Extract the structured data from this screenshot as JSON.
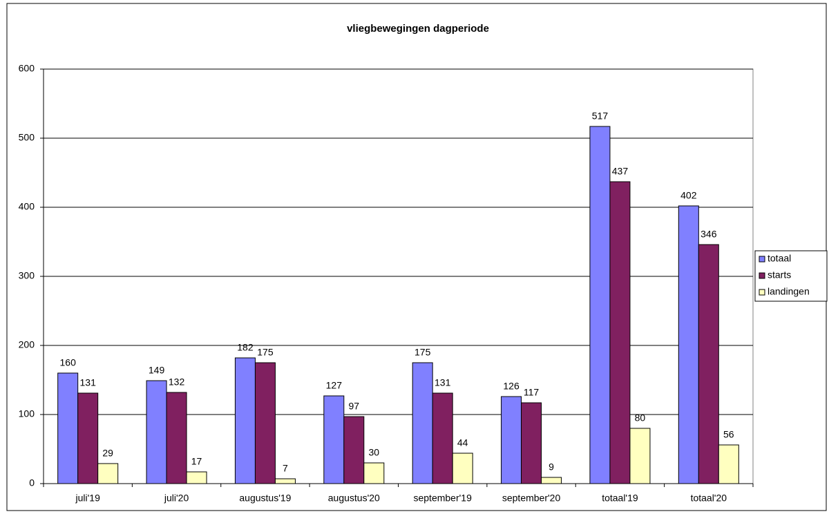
{
  "chart_data": {
    "type": "bar",
    "title": "vliegbewegingen dagperiode",
    "categories": [
      "juli'19",
      "juli'20",
      "augustus'19",
      "augustus'20",
      "september'19",
      "september'20",
      "totaal'19",
      "totaal'20"
    ],
    "series": [
      {
        "name": "totaal",
        "color": "#8080ff",
        "values": [
          160,
          149,
          182,
          127,
          175,
          126,
          517,
          402
        ]
      },
      {
        "name": "starts",
        "color": "#802060",
        "values": [
          131,
          132,
          175,
          97,
          131,
          117,
          437,
          346
        ]
      },
      {
        "name": "landingen",
        "color": "#ffffc0",
        "values": [
          29,
          17,
          7,
          30,
          44,
          9,
          80,
          56
        ]
      }
    ],
    "ylim": [
      0,
      600
    ],
    "yticks": [
      0,
      100,
      200,
      300,
      400,
      500,
      600
    ],
    "grid": true,
    "legend": "right"
  }
}
